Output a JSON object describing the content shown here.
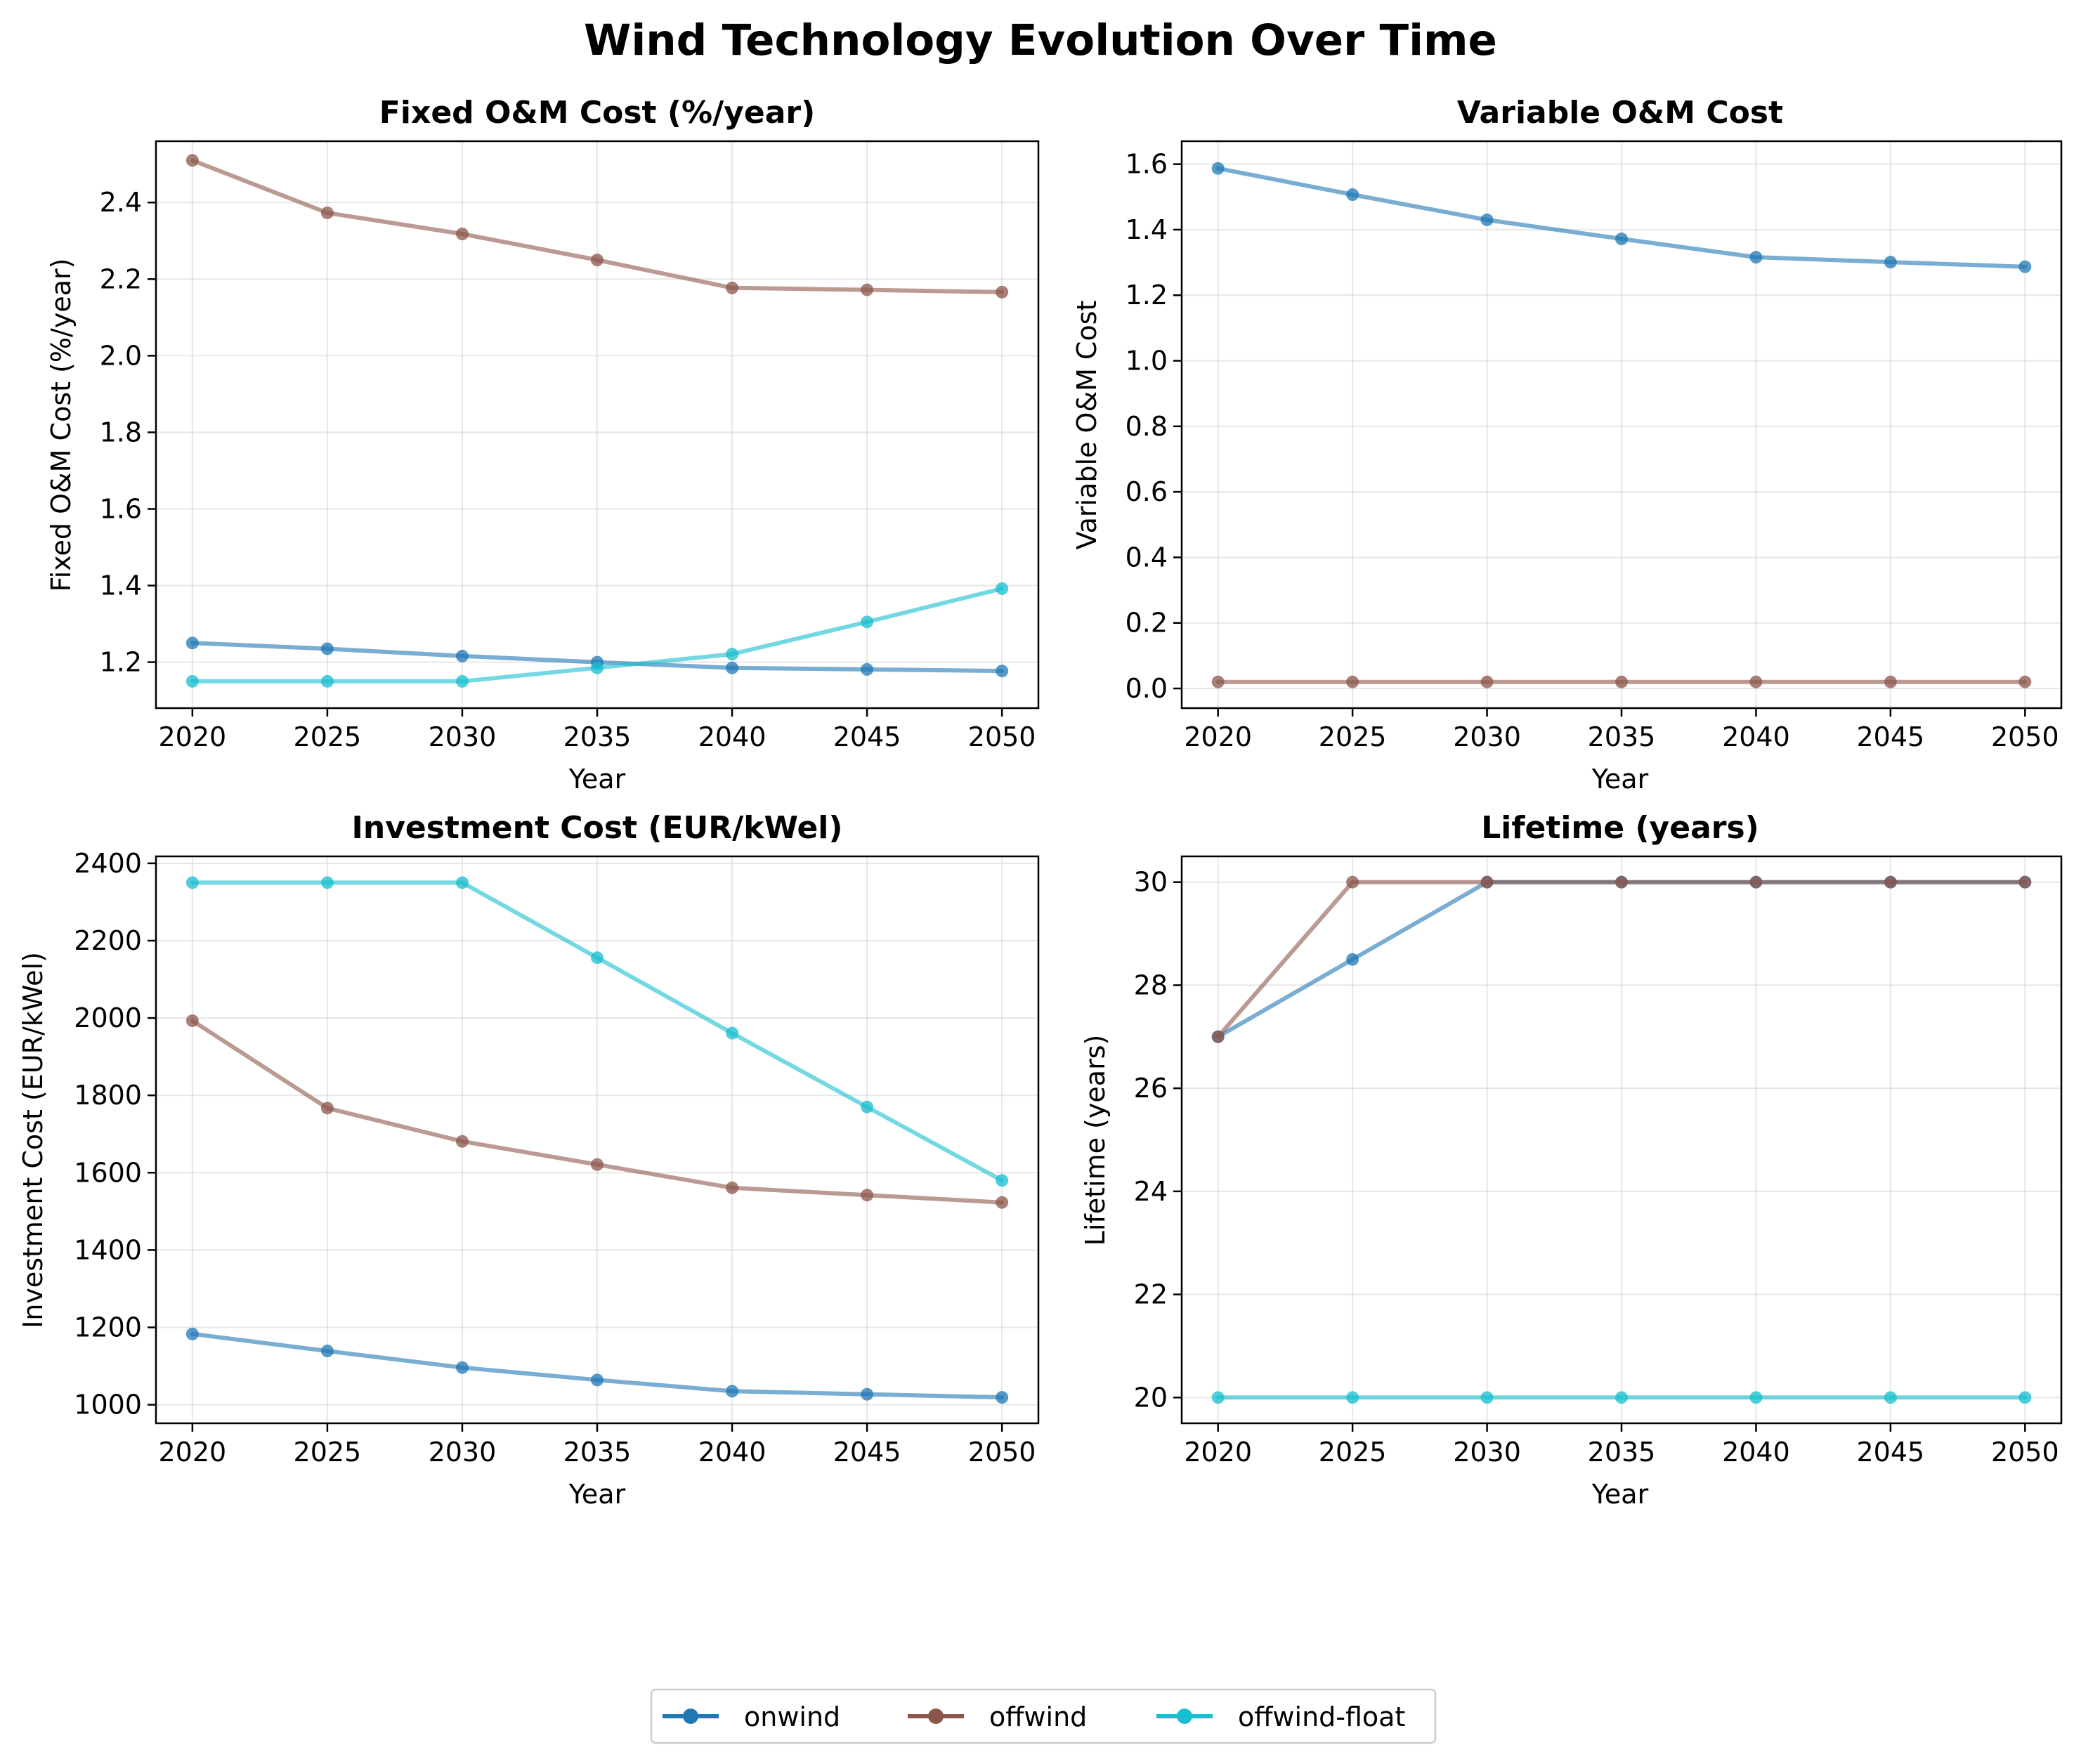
{
  "title": "Wind Technology Evolution Over Time",
  "legend": {
    "placement": "bottom-center",
    "entries": [
      {
        "name": "onwind",
        "color": "#1f77b4"
      },
      {
        "name": "offwind",
        "color": "#8c564b"
      },
      {
        "name": "offwind-float",
        "color": "#17becf"
      }
    ]
  },
  "chart_data": [
    {
      "type": "line",
      "title": "Fixed O&M Cost (%/year)",
      "xlabel": "Year",
      "ylabel": "Fixed O&M Cost (%/year)",
      "x": [
        2020,
        2025,
        2030,
        2035,
        2040,
        2045,
        2050
      ],
      "xticks": [
        2020,
        2025,
        2030,
        2035,
        2040,
        2045,
        2050
      ],
      "ylim": [
        1.08,
        2.56
      ],
      "yticks": [
        1.2,
        1.4,
        1.6,
        1.8,
        2.0,
        2.2,
        2.4
      ],
      "ytick_labels": [
        "1.2",
        "1.4",
        "1.6",
        "1.8",
        "2.0",
        "2.2",
        "2.4"
      ],
      "grid": true,
      "series": [
        {
          "name": "onwind",
          "values": [
            1.25,
            1.235,
            1.216,
            1.2,
            1.185,
            1.181,
            1.177
          ]
        },
        {
          "name": "offwind",
          "values": [
            2.51,
            2.373,
            2.318,
            2.25,
            2.177,
            2.172,
            2.166
          ]
        },
        {
          "name": "offwind-float",
          "values": [
            1.15,
            1.15,
            1.15,
            1.185,
            1.221,
            1.305,
            1.392
          ]
        }
      ]
    },
    {
      "type": "line",
      "title": "Variable O&M Cost",
      "xlabel": "Year",
      "ylabel": "Variable O&M Cost",
      "x": [
        2020,
        2025,
        2030,
        2035,
        2040,
        2045,
        2050
      ],
      "xticks": [
        2020,
        2025,
        2030,
        2035,
        2040,
        2045,
        2050
      ],
      "ylim": [
        -0.06,
        1.67
      ],
      "yticks": [
        0.0,
        0.2,
        0.4,
        0.6,
        0.8,
        1.0,
        1.2,
        1.4,
        1.6
      ],
      "ytick_labels": [
        "0.0",
        "0.2",
        "0.4",
        "0.6",
        "0.8",
        "1.0",
        "1.2",
        "1.4",
        "1.6"
      ],
      "grid": true,
      "series": [
        {
          "name": "onwind",
          "values": [
            1.587,
            1.507,
            1.43,
            1.372,
            1.316,
            1.301,
            1.287
          ]
        },
        {
          "name": "offwind",
          "values": [
            0.02,
            0.02,
            0.02,
            0.02,
            0.02,
            0.02,
            0.02
          ]
        }
      ]
    },
    {
      "type": "line",
      "title": "Investment Cost (EUR/kWel)",
      "xlabel": "Year",
      "ylabel": "Investment Cost (EUR/kWel)",
      "x": [
        2020,
        2025,
        2030,
        2035,
        2040,
        2045,
        2050
      ],
      "xticks": [
        2020,
        2025,
        2030,
        2035,
        2040,
        2045,
        2050
      ],
      "ylim": [
        952,
        2418
      ],
      "yticks": [
        1000,
        1200,
        1400,
        1600,
        1800,
        2000,
        2200,
        2400
      ],
      "ytick_labels": [
        "1000",
        "1200",
        "1400",
        "1600",
        "1800",
        "2000",
        "2200",
        "2400"
      ],
      "grid": true,
      "series": [
        {
          "name": "onwind",
          "values": [
            1183,
            1139,
            1096,
            1064,
            1035,
            1027,
            1019
          ]
        },
        {
          "name": "offwind",
          "values": [
            1993,
            1767,
            1681,
            1621,
            1561,
            1542,
            1523
          ]
        },
        {
          "name": "offwind-float",
          "values": [
            2350,
            2350,
            2350,
            2156,
            1961,
            1770,
            1580
          ]
        }
      ]
    },
    {
      "type": "line",
      "title": "Lifetime (years)",
      "xlabel": "Year",
      "ylabel": "Lifetime (years)",
      "x": [
        2020,
        2025,
        2030,
        2035,
        2040,
        2045,
        2050
      ],
      "xticks": [
        2020,
        2025,
        2030,
        2035,
        2040,
        2045,
        2050
      ],
      "ylim": [
        19.5,
        30.5
      ],
      "yticks": [
        20,
        22,
        24,
        26,
        28,
        30
      ],
      "ytick_labels": [
        "20",
        "22",
        "24",
        "26",
        "28",
        "30"
      ],
      "grid": true,
      "series": [
        {
          "name": "onwind",
          "values": [
            27,
            28.5,
            30,
            30,
            30,
            30,
            30
          ]
        },
        {
          "name": "offwind",
          "values": [
            27,
            30,
            30,
            30,
            30,
            30,
            30
          ]
        },
        {
          "name": "offwind-float",
          "values": [
            20,
            20,
            20,
            20,
            20,
            20,
            20
          ]
        }
      ]
    }
  ]
}
